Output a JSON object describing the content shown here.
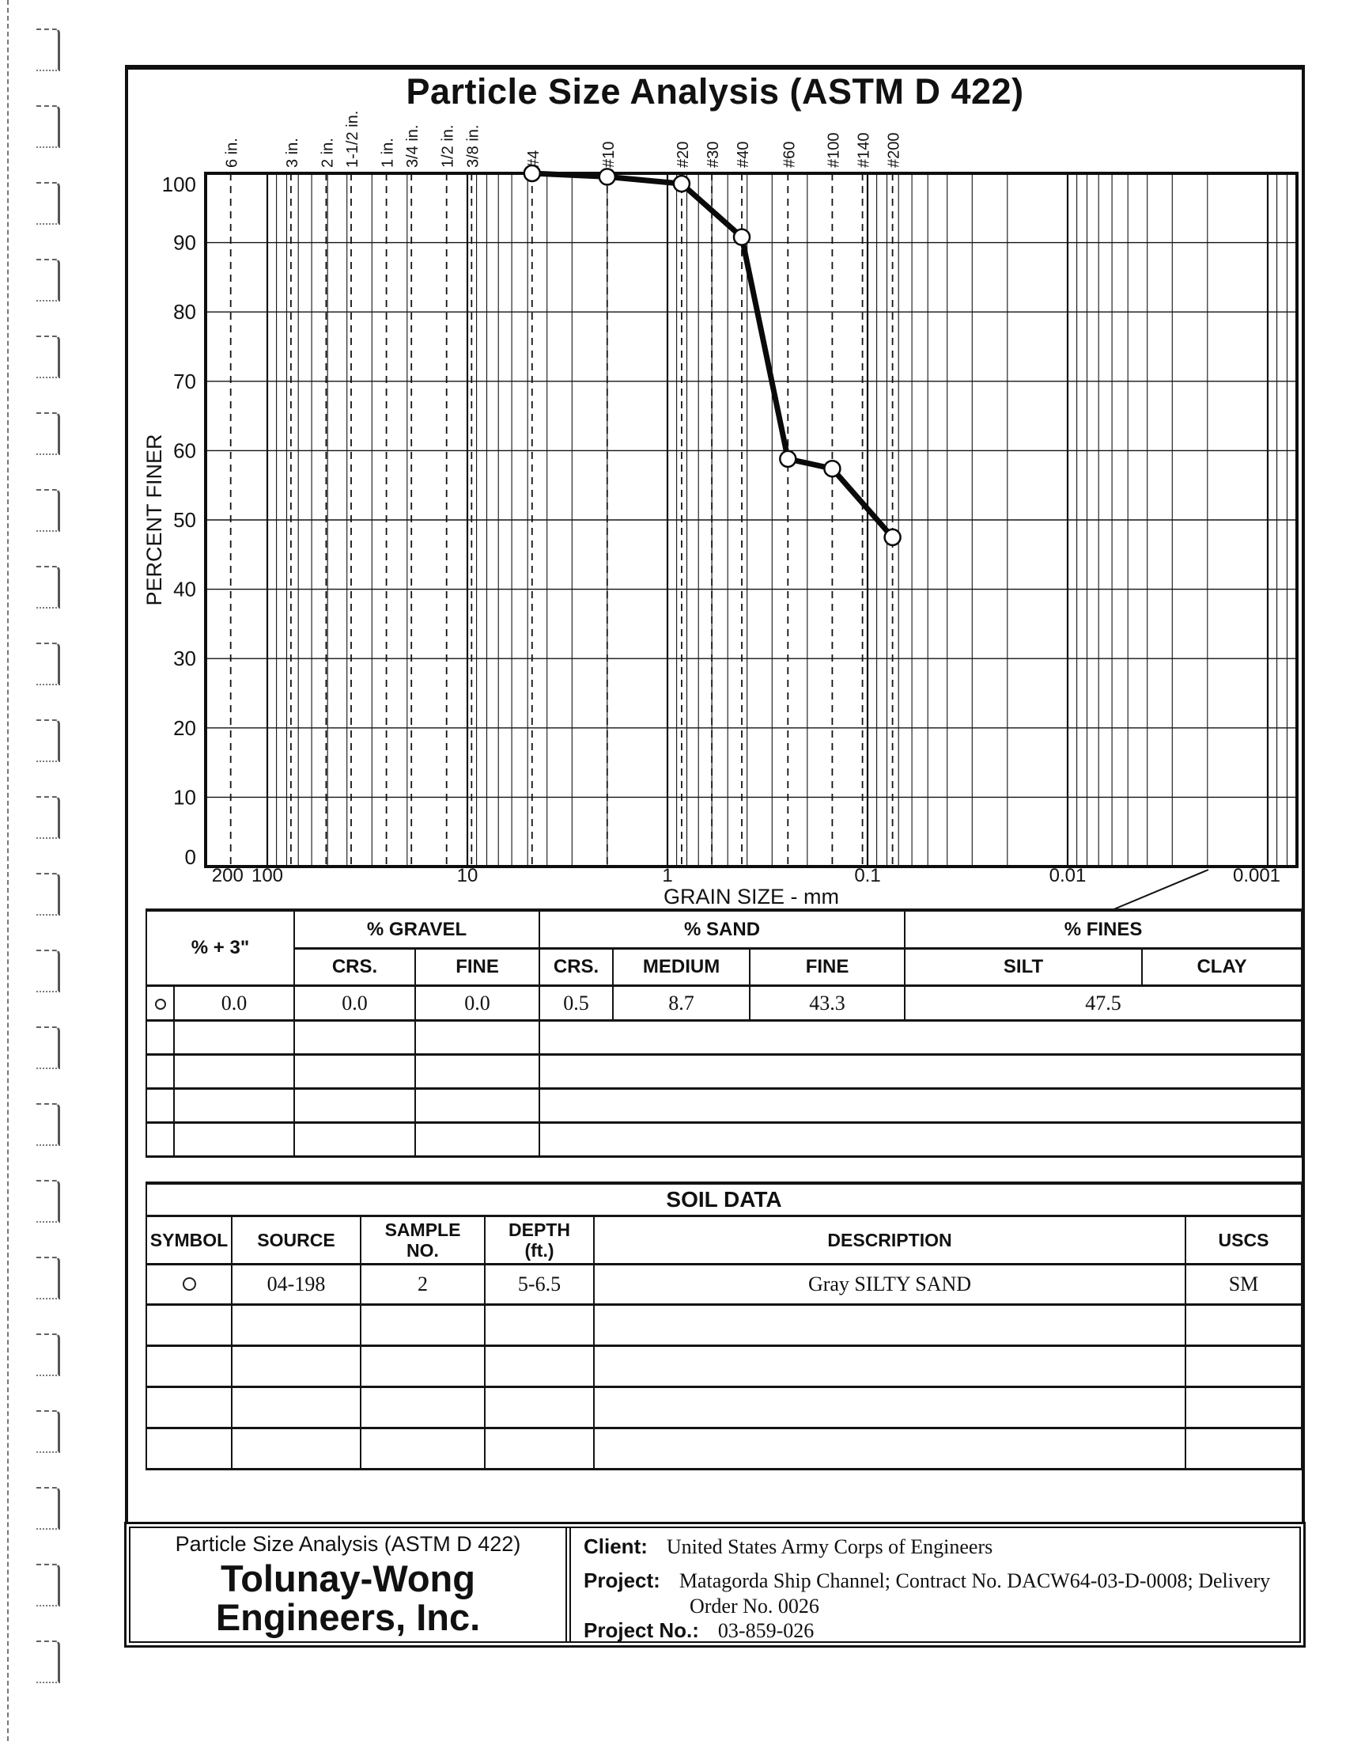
{
  "header": {
    "title": "Particle Size Analysis (ASTM D 422)"
  },
  "chart_data": {
    "type": "line",
    "title": "Particle Size Analysis (ASTM D 422)",
    "xlabel": "GRAIN SIZE - mm",
    "ylabel": "PERCENT FINER",
    "x_scale": "log",
    "xlim_mm": [
      210,
      0.0007
    ],
    "ylim": [
      0,
      100
    ],
    "grid": true,
    "y_ticks": [
      0,
      10,
      20,
      30,
      40,
      50,
      60,
      70,
      80,
      90,
      100
    ],
    "x_ticks": [
      {
        "label": "200",
        "mm": 200
      },
      {
        "label": "100",
        "mm": 100
      },
      {
        "label": "10",
        "mm": 10
      },
      {
        "label": "1",
        "mm": 1
      },
      {
        "label": "0.1",
        "mm": 0.1
      },
      {
        "label": "0.01",
        "mm": 0.01
      },
      {
        "label": "0.001",
        "mm": 0.001
      }
    ],
    "sieve_lines": [
      {
        "label": "6 in.",
        "mm": 152.4
      },
      {
        "label": "3 in.",
        "mm": 76.2
      },
      {
        "label": "2 in.",
        "mm": 50.8
      },
      {
        "label": "1-1/2 in.",
        "mm": 38.1
      },
      {
        "label": "1 in.",
        "mm": 25.4
      },
      {
        "label": "3/4 in.",
        "mm": 19.05
      },
      {
        "label": "1/2 in.",
        "mm": 12.7
      },
      {
        "label": "3/8 in.",
        "mm": 9.525
      },
      {
        "label": "#4",
        "mm": 4.75
      },
      {
        "label": "#10",
        "mm": 2
      },
      {
        "label": "#20",
        "mm": 0.85
      },
      {
        "label": "#30",
        "mm": 0.6
      },
      {
        "label": "#40",
        "mm": 0.425
      },
      {
        "label": "#60",
        "mm": 0.25
      },
      {
        "label": "#100",
        "mm": 0.15
      },
      {
        "label": "#140",
        "mm": 0.106
      },
      {
        "label": "#200",
        "mm": 0.075
      }
    ],
    "series": [
      {
        "name": "Source 04-198 Sample 2",
        "marker": "circle",
        "points_mm_percent": [
          [
            4.75,
            100
          ],
          [
            2,
            99.5
          ],
          [
            0.85,
            98.5
          ],
          [
            0.425,
            90.8
          ],
          [
            0.25,
            58.8
          ],
          [
            0.15,
            57.4
          ],
          [
            0.075,
            47.5
          ]
        ]
      }
    ]
  },
  "fractions_table": {
    "plus3_header": "% + 3\"",
    "gravel_header": "% GRAVEL",
    "sand_header": "% SAND",
    "fines_header": "% FINES",
    "gravel_subheaders": [
      "CRS.",
      "FINE"
    ],
    "sand_subheaders": [
      "CRS.",
      "MEDIUM",
      "FINE"
    ],
    "fines_subheaders": [
      "SILT",
      "CLAY"
    ],
    "row": {
      "symbol": "circle",
      "plus3": "0.0",
      "gravel_crs": "0.0",
      "gravel_fine": "0.0",
      "sand_crs": "0.5",
      "sand_medium": "8.7",
      "sand_fine": "43.3",
      "fines": "47.5"
    },
    "empty_row_count": 4
  },
  "soil_data_table": {
    "title": "SOIL DATA",
    "headers": {
      "symbol": "SYMBOL",
      "source": "SOURCE",
      "sample_no": "SAMPLE\nNO.",
      "depth": "DEPTH\n(ft.)",
      "description": "DESCRIPTION",
      "uscs": "USCS"
    },
    "row": {
      "symbol": "circle",
      "source": "04-198",
      "sample_no": "2",
      "depth": "5-6.5",
      "description": "Gray SILTY SAND",
      "uscs": "SM"
    },
    "empty_row_count": 4
  },
  "footer": {
    "report_type": "Particle Size Analysis (ASTM D 422)",
    "company_line1": "Tolunay-Wong",
    "company_line2": "Engineers, Inc.",
    "client_label": "Client:",
    "client": "United States Army Corps of Engineers",
    "project_label": "Project:",
    "project_line1": "Matagorda Ship Channel; Contract No. DACW64-03-D-0008;  Delivery",
    "project_line2": "Order No. 0026",
    "project_no_label": "Project No.:",
    "project_no": "03-859-026"
  },
  "colors": {
    "ink": "#131313",
    "paper": "#ffffff"
  }
}
